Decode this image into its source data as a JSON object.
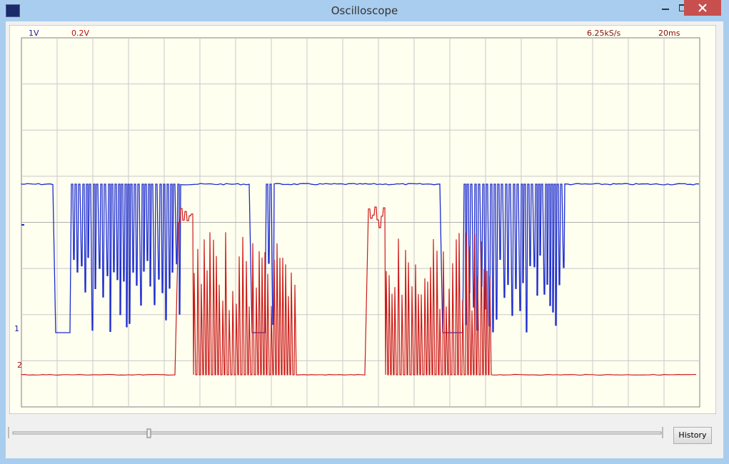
{
  "window": {
    "title": "Oscilloscope"
  },
  "scope": {
    "channel1_scale": "1V",
    "channel2_scale": "0.2V",
    "sample_rate": "6.25kS/s",
    "timebase": "20ms",
    "channel1_marker": "1",
    "channel2_marker": "2"
  },
  "controls": {
    "history_button": "History"
  }
}
